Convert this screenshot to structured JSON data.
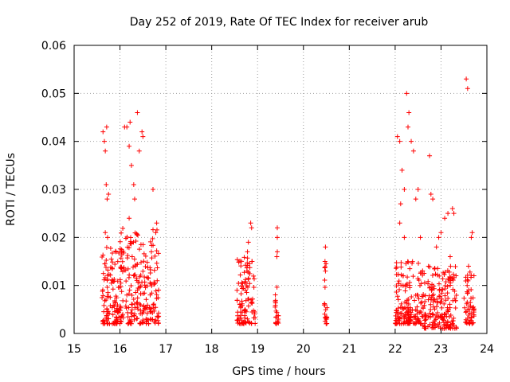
{
  "chart_data": {
    "type": "scatter",
    "title": "Day 252 of 2019, Rate Of TEC Index for receiver arub",
    "xlabel": "GPS time / hours",
    "ylabel": "ROTI / TECUs",
    "xlim": [
      15,
      24
    ],
    "ylim": [
      0,
      0.06
    ],
    "x_ticks": [
      "15",
      "16",
      "17",
      "18",
      "19",
      "20",
      "21",
      "22",
      "23",
      "24"
    ],
    "y_ticks": [
      "0",
      "0.01",
      "0.02",
      "0.03",
      "0.04",
      "0.05",
      "0.06"
    ],
    "grid": true,
    "marker": "plus",
    "color": "#ff0000",
    "clusters": [
      {
        "x_range": [
          15.6,
          16.05
        ],
        "y_base": [
          0.002,
          0.018
        ],
        "peak_points": [
          [
            15.63,
            0.042
          ],
          [
            15.66,
            0.04
          ],
          [
            15.68,
            0.038
          ],
          [
            15.7,
            0.031
          ],
          [
            15.72,
            0.028
          ],
          [
            15.75,
            0.029
          ],
          [
            15.73,
            0.02
          ],
          [
            15.68,
            0.021
          ],
          [
            15.71,
            0.043
          ]
        ]
      },
      {
        "x_range": [
          16.0,
          16.85
        ],
        "y_base": [
          0.002,
          0.022
        ],
        "peak_points": [
          [
            16.1,
            0.043
          ],
          [
            16.15,
            0.043
          ],
          [
            16.22,
            0.044
          ],
          [
            16.38,
            0.046
          ],
          [
            16.2,
            0.039
          ],
          [
            16.25,
            0.035
          ],
          [
            16.3,
            0.031
          ],
          [
            16.42,
            0.038
          ],
          [
            16.48,
            0.042
          ],
          [
            16.5,
            0.041
          ],
          [
            16.2,
            0.024
          ],
          [
            16.32,
            0.028
          ],
          [
            16.72,
            0.03
          ],
          [
            16.8,
            0.023
          ],
          [
            16.78,
            0.021
          ]
        ]
      },
      {
        "x_range": [
          18.55,
          18.95
        ],
        "y_base": [
          0.002,
          0.016
        ],
        "peak_points": [
          [
            18.85,
            0.023
          ],
          [
            18.87,
            0.022
          ],
          [
            18.8,
            0.019
          ],
          [
            18.78,
            0.017
          ]
        ]
      },
      {
        "x_range": [
          19.38,
          19.46
        ],
        "y_base": [
          0.002,
          0.01
        ],
        "peak_points": [
          [
            19.43,
            0.022
          ],
          [
            19.43,
            0.02
          ],
          [
            19.42,
            0.016
          ],
          [
            19.43,
            0.017
          ]
        ]
      },
      {
        "x_range": [
          20.45,
          20.52
        ],
        "y_base": [
          0.002,
          0.015
        ],
        "peak_points": [
          [
            20.48,
            0.018
          ],
          [
            20.47,
            0.015
          ],
          [
            20.48,
            0.013
          ]
        ]
      },
      {
        "x_range": [
          22.0,
          22.6
        ],
        "y_base": [
          0.002,
          0.015
        ],
        "peak_points": [
          [
            22.05,
            0.041
          ],
          [
            22.1,
            0.04
          ],
          [
            22.25,
            0.05
          ],
          [
            22.3,
            0.046
          ],
          [
            22.28,
            0.043
          ],
          [
            22.35,
            0.04
          ],
          [
            22.4,
            0.038
          ],
          [
            22.15,
            0.034
          ],
          [
            22.2,
            0.03
          ],
          [
            22.12,
            0.027
          ],
          [
            22.1,
            0.023
          ],
          [
            22.45,
            0.028
          ],
          [
            22.5,
            0.03
          ],
          [
            22.55,
            0.02
          ],
          [
            22.2,
            0.02
          ]
        ]
      },
      {
        "x_range": [
          22.6,
          23.35
        ],
        "y_base": [
          0.001,
          0.014
        ],
        "peak_points": [
          [
            22.75,
            0.037
          ],
          [
            22.78,
            0.029
          ],
          [
            22.82,
            0.028
          ],
          [
            22.95,
            0.02
          ],
          [
            23.0,
            0.021
          ],
          [
            23.08,
            0.024
          ],
          [
            23.15,
            0.025
          ],
          [
            23.25,
            0.026
          ],
          [
            23.28,
            0.025
          ],
          [
            22.9,
            0.018
          ],
          [
            23.2,
            0.016
          ]
        ]
      },
      {
        "x_range": [
          23.5,
          23.72
        ],
        "y_base": [
          0.002,
          0.013
        ],
        "peak_points": [
          [
            23.55,
            0.053
          ],
          [
            23.58,
            0.051
          ],
          [
            23.68,
            0.021
          ],
          [
            23.66,
            0.02
          ],
          [
            23.6,
            0.014
          ]
        ]
      }
    ]
  }
}
